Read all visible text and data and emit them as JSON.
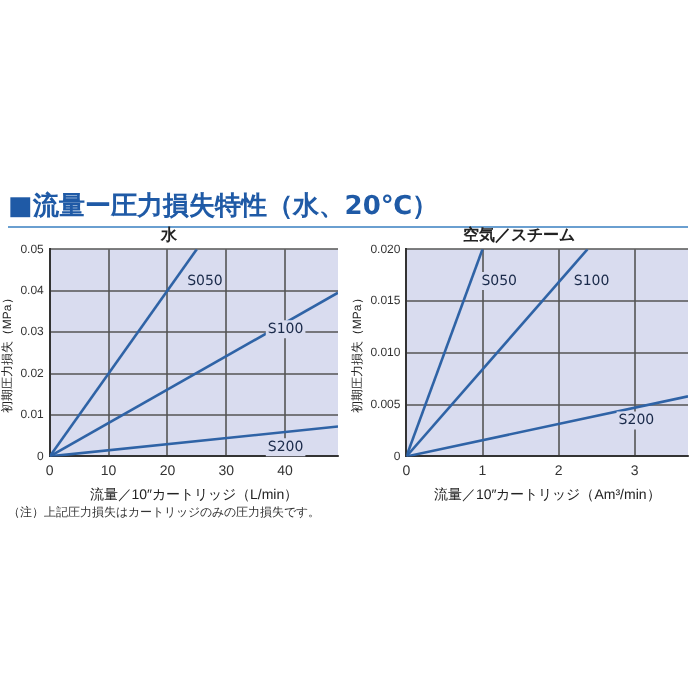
{
  "chart_data": [
    {
      "type": "line",
      "title": "水",
      "xlabel": "流量／10″カートリッジ（L/min）",
      "ylabel": "初期圧力損失（MPa）",
      "annotations": [
        "■流量ー圧力損失特性（水、20℃）",
        "（注）上記圧力損失はカートリッジのみの圧力損失です。"
      ],
      "series": [
        {
          "name": "S050",
          "color": "#2f63a6",
          "x": [
            0,
            25
          ],
          "values": [
            0,
            0.05
          ]
        },
        {
          "name": "S100",
          "color": "#2f63a6",
          "x": [
            0,
            49
          ],
          "values": [
            0,
            0.0395
          ]
        },
        {
          "name": "S200",
          "color": "#2f63a6",
          "x": [
            0,
            49
          ],
          "values": [
            0,
            0.0072
          ]
        }
      ],
      "xlim": [
        0,
        49
      ],
      "xticks": [
        0,
        10,
        20,
        30,
        40
      ],
      "ylim": [
        0,
        0.05
      ],
      "yticks": [
        0,
        0.01,
        0.02,
        0.03,
        0.04,
        0.05
      ],
      "grid": true,
      "legend": false,
      "marker": "none",
      "line_style": "solid"
    },
    {
      "type": "line",
      "title": "空気／スチーム",
      "xlabel": "流量／10″カートリッジ（Am³/min）",
      "ylabel": "初期圧力損失（MPa）",
      "series": [
        {
          "name": "S050",
          "color": "#2f63a6",
          "x": [
            0,
            1.0
          ],
          "values": [
            0,
            0.02
          ]
        },
        {
          "name": "S100",
          "color": "#2f63a6",
          "x": [
            0,
            2.38
          ],
          "values": [
            0,
            0.02
          ]
        },
        {
          "name": "S200",
          "color": "#2f63a6",
          "x": [
            0,
            3.7
          ],
          "values": [
            0,
            0.0058
          ]
        }
      ],
      "xlim": [
        0,
        3.7
      ],
      "xticks": [
        0,
        1,
        2,
        3
      ],
      "ylim": [
        0,
        0.02
      ],
      "yticks": [
        0,
        {
          "value": 0.005,
          "label": "0.005"
        },
        {
          "value": 0.01,
          "label": "0.010"
        },
        {
          "value": 0.015,
          "label": "0.015"
        },
        {
          "value": 0.02,
          "label": "0.020"
        }
      ],
      "grid": true,
      "legend": false,
      "marker": "none",
      "line_style": "solid"
    }
  ]
}
